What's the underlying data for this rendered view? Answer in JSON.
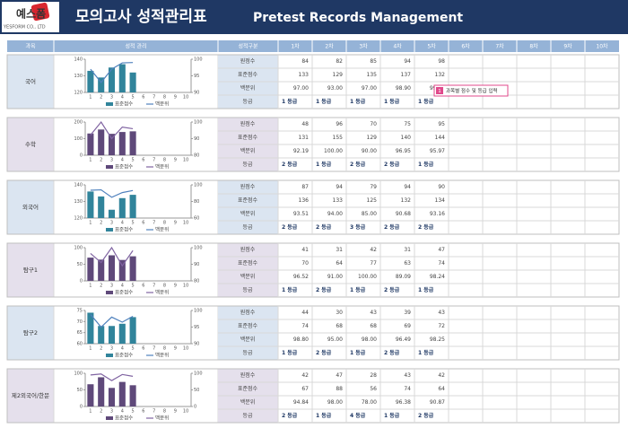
{
  "header": {
    "logo": "예스폼",
    "company": "YESFORM CO., LTD",
    "title": "모의고사 성적관리표",
    "subtitle": "Pretest Records Management"
  },
  "columns": [
    "과목",
    "성적 관리",
    "성적구분",
    "1차",
    "2차",
    "3차",
    "4차",
    "5차",
    "6차",
    "7차",
    "8차",
    "9차",
    "10차"
  ],
  "row_labels": [
    "원점수",
    "표준점수",
    "백분위",
    "등급"
  ],
  "legend": [
    "표준점수",
    "백분위"
  ],
  "chart_x": [
    1,
    2,
    3,
    4,
    5,
    6,
    7,
    8,
    9,
    10
  ],
  "note": {
    "marker": "1",
    "text": "과목별 점수 및 등급 입력"
  },
  "subjects": [
    {
      "name": "국어",
      "bg": "#dbe5f1",
      "bar_color": "#31849b",
      "line_color": "#4f81bd",
      "raw": [
        84,
        82,
        85,
        94,
        98
      ],
      "standard": [
        133,
        129,
        135,
        137,
        132
      ],
      "percentile": [
        "97.00",
        "93.00",
        "97.00",
        "98.90",
        "99.00"
      ],
      "grade": [
        "1 등급",
        "1 등급",
        "1 등급",
        "1 등급",
        "1 등급"
      ],
      "ylim": [
        120,
        140
      ],
      "yticks": [
        120,
        130,
        140
      ],
      "y2lim": [
        90,
        100
      ],
      "y2ticks": [
        90,
        95,
        100
      ]
    },
    {
      "name": "수학",
      "bg": "#e5e0ec",
      "bar_color": "#5f497a",
      "line_color": "#8064a2",
      "raw": [
        48,
        96,
        70,
        75,
        95
      ],
      "standard": [
        131,
        155,
        129,
        140,
        144
      ],
      "percentile": [
        "92.19",
        "100.00",
        "90.00",
        "96.95",
        "95.97"
      ],
      "grade": [
        "2 등급",
        "1 등급",
        "2 등급",
        "2 등급",
        "1 등급"
      ],
      "ylim": [
        0,
        200
      ],
      "yticks": [
        0,
        100,
        200
      ],
      "y2lim": [
        80,
        100
      ],
      "y2ticks": [
        80,
        90,
        100
      ]
    },
    {
      "name": "외국어",
      "bg": "#dbe5f1",
      "bar_color": "#31849b",
      "line_color": "#4f81bd",
      "raw": [
        87,
        94,
        79,
        94,
        90
      ],
      "standard": [
        136,
        133,
        125,
        132,
        134
      ],
      "percentile": [
        "93.51",
        "94.00",
        "85.00",
        "90.68",
        "93.16"
      ],
      "grade": [
        "2 등급",
        "2 등급",
        "3 등급",
        "2 등급",
        "2 등급"
      ],
      "ylim": [
        120,
        140
      ],
      "yticks": [
        120,
        130,
        140
      ],
      "y2lim": [
        60,
        100
      ],
      "y2ticks": [
        60,
        80,
        100
      ]
    },
    {
      "name": "탐구1",
      "bg": "#e5e0ec",
      "bar_color": "#5f497a",
      "line_color": "#8064a2",
      "raw": [
        41,
        31,
        42,
        31,
        47
      ],
      "standard": [
        70,
        64,
        77,
        63,
        74
      ],
      "percentile": [
        "96.52",
        "91.00",
        "100.00",
        "89.09",
        "98.24"
      ],
      "grade": [
        "1 등급",
        "2 등급",
        "1 등급",
        "2 등급",
        "1 등급"
      ],
      "ylim": [
        0,
        100
      ],
      "yticks": [
        0,
        50,
        100
      ],
      "y2lim": [
        80,
        100
      ],
      "y2ticks": [
        80,
        90,
        100
      ]
    },
    {
      "name": "탐구2",
      "bg": "#dbe5f1",
      "bar_color": "#31849b",
      "line_color": "#4f81bd",
      "raw": [
        44,
        30,
        43,
        39,
        43
      ],
      "standard": [
        74,
        68,
        68,
        69,
        72
      ],
      "percentile": [
        "98.80",
        "95.00",
        "98.00",
        "96.49",
        "98.25"
      ],
      "grade": [
        "1 등급",
        "2 등급",
        "1 등급",
        "2 등급",
        "1 등급"
      ],
      "ylim": [
        60,
        75
      ],
      "yticks": [
        60,
        65,
        70,
        75
      ],
      "y2lim": [
        90,
        100
      ],
      "y2ticks": [
        90,
        95,
        100
      ]
    },
    {
      "name": "제2외국어/한문",
      "bg": "#e5e0ec",
      "bar_color": "#5f497a",
      "line_color": "#8064a2",
      "raw": [
        42,
        47,
        28,
        43,
        42
      ],
      "standard": [
        67,
        88,
        56,
        74,
        64
      ],
      "percentile": [
        "94.84",
        "98.00",
        "78.00",
        "96.38",
        "90.87"
      ],
      "grade": [
        "2 등급",
        "1 등급",
        "4 등급",
        "1 등급",
        "2 등급"
      ],
      "ylim": [
        0,
        100
      ],
      "yticks": [
        0,
        50,
        100
      ],
      "y2lim": [
        0,
        100
      ],
      "y2ticks": [
        0,
        50,
        100
      ]
    }
  ]
}
